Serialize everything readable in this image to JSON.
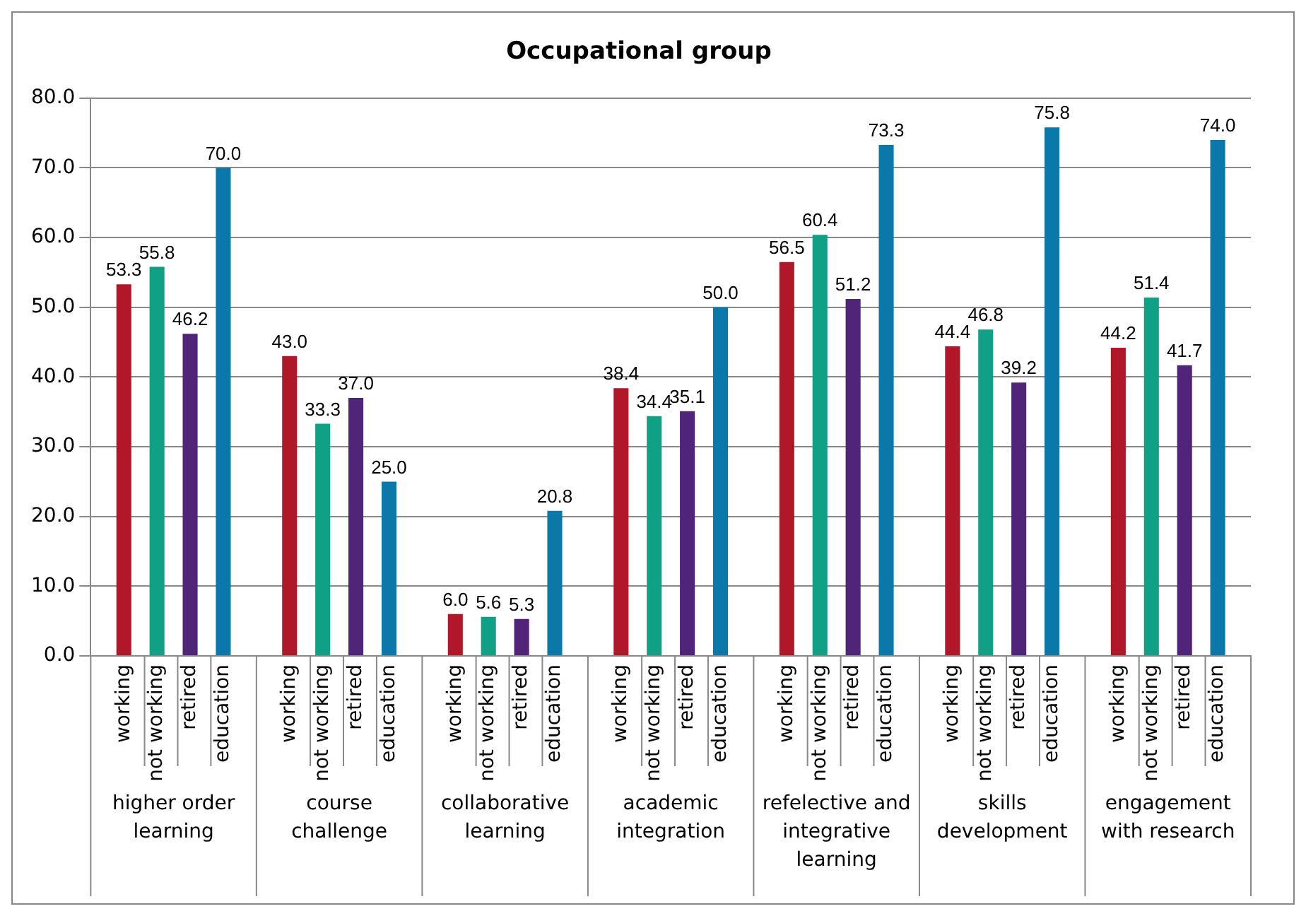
{
  "chart_data": {
    "type": "bar",
    "title": "Occupational group",
    "categories": [
      "higher order learning",
      "course challenge",
      "collaborative learning",
      "academic integration",
      "refelective and integrative learning",
      "skills development",
      "engagement with research"
    ],
    "series": [
      {
        "name": "working",
        "color": "#b0182a",
        "values": [
          53.3,
          43.0,
          6.0,
          38.4,
          56.5,
          44.4,
          44.2
        ],
        "value_labels": [
          "53.3",
          "43.0",
          "6.0",
          "38.4",
          "56.5",
          "44.4",
          "44.2"
        ]
      },
      {
        "name": "not working",
        "color": "#10a085",
        "values": [
          55.8,
          33.3,
          5.6,
          34.4,
          60.4,
          46.8,
          51.4
        ],
        "value_labels": [
          "55.8",
          "33.3",
          "5.6",
          "34.4",
          "60.4",
          "46.8",
          "51.4"
        ]
      },
      {
        "name": "retired",
        "color": "#4f2479",
        "values": [
          46.2,
          37.0,
          5.3,
          35.1,
          51.2,
          39.2,
          41.7
        ],
        "value_labels": [
          "46.2",
          "37.0",
          "5.3",
          "35.1",
          "51.2",
          "39.2",
          "41.7"
        ]
      },
      {
        "name": "education",
        "color": "#0a78a8",
        "values": [
          70.0,
          25.0,
          20.8,
          50.0,
          73.3,
          75.8,
          74.0
        ],
        "value_labels": [
          "70.0",
          "25.0",
          "20.8",
          "50.0",
          "73.3",
          "75.8",
          "74.0"
        ]
      }
    ],
    "ylim": [
      0,
      80
    ],
    "yticks": [
      {
        "value": 0,
        "label": "0.0"
      },
      {
        "value": 10,
        "label": "10.0"
      },
      {
        "value": 20,
        "label": "20.0"
      },
      {
        "value": 30,
        "label": "30.0"
      },
      {
        "value": 40,
        "label": "40.0"
      },
      {
        "value": 50,
        "label": "50.0"
      },
      {
        "value": 60,
        "label": "60.0"
      },
      {
        "value": 70,
        "label": "70.0"
      },
      {
        "value": 80,
        "label": "80.0"
      }
    ],
    "grid": "y"
  }
}
